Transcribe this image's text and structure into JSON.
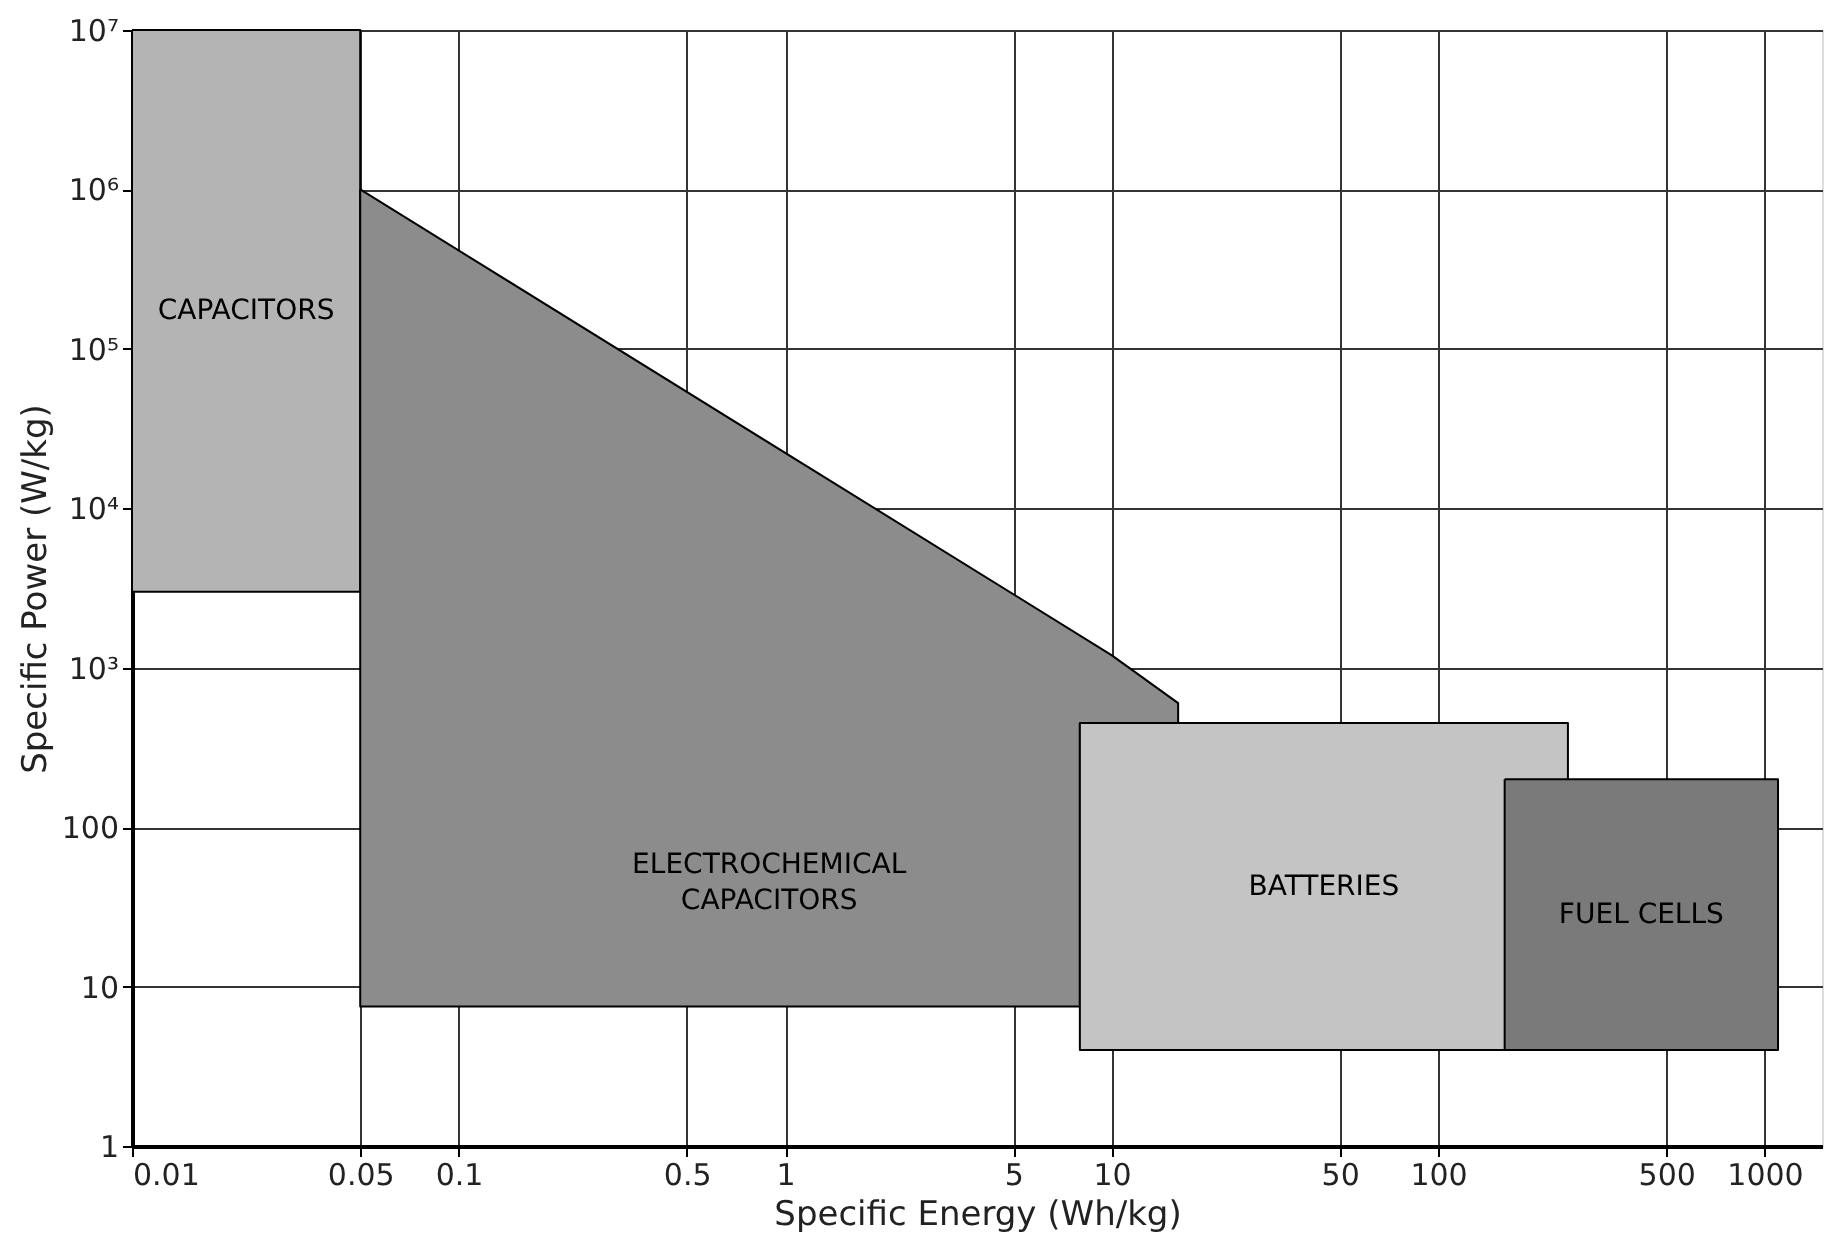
{
  "chart_data": {
    "type": "area",
    "xlabel": "Specific Energy (Wh/kg)",
    "ylabel": "Specific Power (W/kg)",
    "log": "xy",
    "grid": true,
    "legend": false,
    "xlim": [
      0.01,
      1500
    ],
    "xticks": [
      0.01,
      0.05,
      0.1,
      0.5,
      1,
      5,
      10,
      50,
      100,
      500,
      1000
    ],
    "ylim": [
      1,
      10000000
    ],
    "yticks": [
      1,
      10,
      100,
      {
        "value": 1000,
        "label": "10³"
      },
      {
        "value": 10000,
        "label": "10⁴"
      },
      {
        "value": 100000,
        "label": "10⁵"
      },
      {
        "value": 1000000,
        "label": "10⁶"
      },
      {
        "value": 10000000,
        "label": "10⁷"
      }
    ],
    "series": [
      {
        "name": "CAPACITORS",
        "color": "#b4b4b4",
        "x": [
          0.01,
          0.05,
          0.05,
          0.01
        ],
        "values": [
          10000000,
          10000000,
          3000,
          3000
        ]
      },
      {
        "name": "ELECTROCHEMICAL CAPACITORS",
        "color": "#8c8c8c",
        "x": [
          0.05,
          10,
          16,
          16,
          8,
          8,
          0.05
        ],
        "values": [
          1000000,
          1200,
          600,
          450,
          450,
          7.5,
          7.5
        ]
      },
      {
        "name": "BATTERIES",
        "color": "#c4c4c4",
        "x": [
          8,
          250,
          250,
          8
        ],
        "values": [
          450,
          450,
          4,
          4
        ]
      },
      {
        "name": "FUEL CELLS",
        "color": "#7a7a7a",
        "x": [
          160,
          1100,
          1100,
          160
        ],
        "values": [
          200,
          200,
          4,
          4
        ]
      }
    ]
  }
}
